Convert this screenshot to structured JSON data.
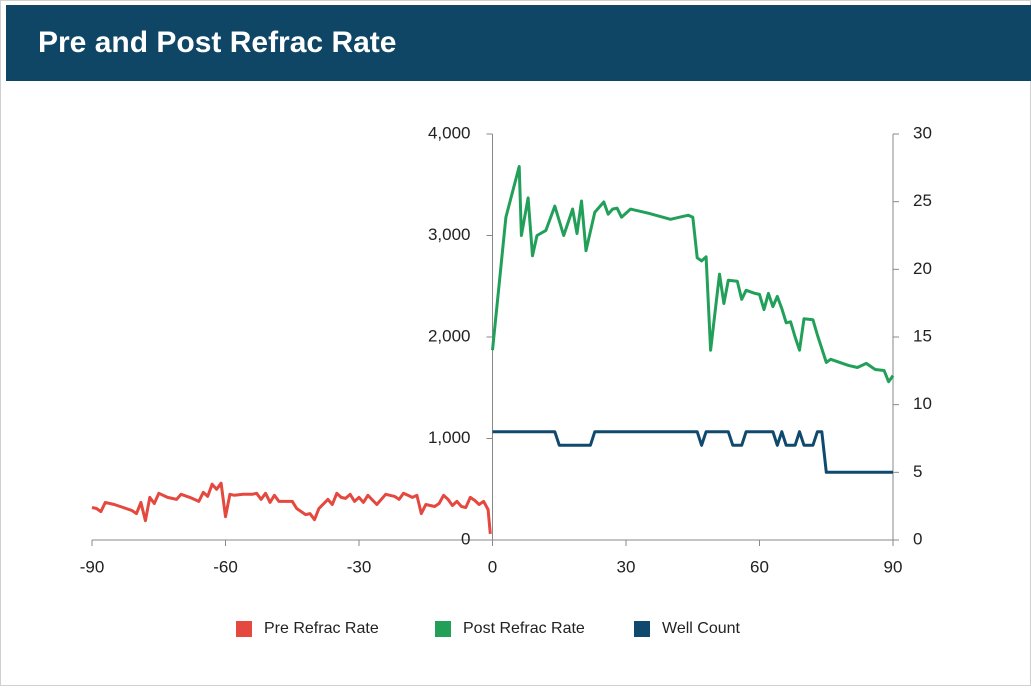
{
  "chart_data": {
    "type": "line",
    "title": "Pre and Post Refrac Rate",
    "xlim": [
      -90,
      90
    ],
    "xticks": [
      -90,
      -60,
      -30,
      0,
      30,
      60,
      90
    ],
    "ylim": [
      0,
      4000
    ],
    "yticks": [
      0,
      {
        "value": 1000,
        "label": "1,000"
      },
      {
        "value": 2000,
        "label": "2,000"
      },
      {
        "value": 3000,
        "label": "3,000"
      },
      {
        "value": 4000,
        "label": "4,000"
      }
    ],
    "y2lim": [
      0,
      30
    ],
    "y2ticks": [
      0,
      5,
      10,
      15,
      20,
      25,
      30
    ],
    "legend": "bottom",
    "series": [
      {
        "name": "Pre Refrac Rate",
        "color": "#e5483f",
        "x": [
          -90,
          -89,
          -88,
          -87,
          -85,
          -83,
          -81,
          -80,
          -79,
          -78,
          -77,
          -76,
          -75,
          -73,
          -71,
          -70,
          -68,
          -66,
          -65,
          -64,
          -63,
          -62,
          -61,
          -60,
          -59,
          -58,
          -56,
          -54,
          -53,
          -52,
          -51,
          -50,
          -49,
          -48,
          -46,
          -45,
          -44,
          -42,
          -41,
          -40,
          -39,
          -37,
          -36,
          -35,
          -34,
          -33,
          -32,
          -31,
          -30,
          -29,
          -28,
          -26,
          -25,
          -24,
          -22,
          -21,
          -20,
          -19,
          -18,
          -17,
          -16,
          -15,
          -13,
          -12,
          -11,
          -10,
          -9,
          -8,
          -7,
          -6,
          -5,
          -4,
          -3,
          -2,
          -1,
          -0.5
        ],
        "values": [
          320,
          310,
          280,
          370,
          350,
          320,
          290,
          260,
          370,
          190,
          420,
          360,
          460,
          420,
          400,
          450,
          420,
          380,
          470,
          430,
          550,
          500,
          560,
          230,
          450,
          440,
          450,
          450,
          460,
          400,
          460,
          370,
          440,
          380,
          380,
          380,
          310,
          250,
          260,
          200,
          310,
          400,
          350,
          460,
          420,
          410,
          450,
          380,
          420,
          370,
          440,
          350,
          400,
          450,
          430,
          400,
          460,
          440,
          420,
          440,
          260,
          350,
          330,
          360,
          440,
          400,
          340,
          380,
          330,
          320,
          420,
          390,
          350,
          380,
          300,
          60
        ]
      },
      {
        "name": "Post Refrac Rate",
        "color": "#22a05a",
        "x": [
          0,
          3,
          6,
          6.5,
          8,
          9,
          10,
          12,
          14,
          16,
          18,
          19,
          20,
          21,
          23,
          25,
          26,
          27,
          28,
          29,
          31,
          35,
          40,
          44,
          45,
          46,
          47,
          48,
          49,
          51,
          52,
          53,
          55,
          56,
          57,
          59,
          60,
          61,
          62,
          63,
          64,
          65,
          66,
          67,
          68,
          69,
          70,
          72,
          73,
          75,
          76,
          80,
          82,
          84,
          86,
          88,
          89,
          90
        ],
        "values": [
          1870,
          3180,
          3680,
          3000,
          3370,
          2800,
          3000,
          3050,
          3290,
          3000,
          3260,
          3020,
          3340,
          2850,
          3230,
          3330,
          3210,
          3260,
          3270,
          3180,
          3260,
          3220,
          3160,
          3200,
          3180,
          2780,
          2750,
          2790,
          1870,
          2620,
          2330,
          2560,
          2550,
          2370,
          2460,
          2430,
          2420,
          2270,
          2430,
          2300,
          2400,
          2280,
          2140,
          2150,
          2000,
          1870,
          2180,
          2170,
          2020,
          1750,
          1780,
          1720,
          1700,
          1740,
          1680,
          1670,
          1560,
          1620
        ]
      },
      {
        "name": "Well Count",
        "color": "#0f4a6e",
        "axis": "y2",
        "x": [
          0,
          14,
          15,
          22,
          23,
          46,
          47,
          48,
          53,
          54,
          56,
          57,
          63,
          64,
          65,
          66,
          68,
          69,
          70,
          72,
          73,
          74,
          75,
          90
        ],
        "values": [
          8,
          8,
          7,
          7,
          8,
          8,
          7,
          8,
          8,
          7,
          7,
          8,
          8,
          7,
          8,
          7,
          7,
          8,
          7,
          7,
          8,
          8,
          5,
          5
        ]
      }
    ]
  }
}
